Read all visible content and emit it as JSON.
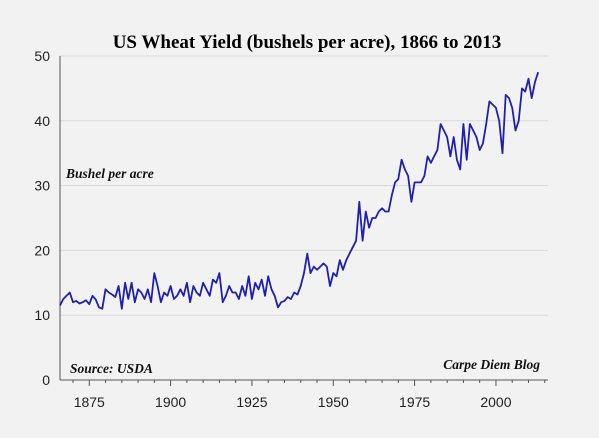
{
  "chart_data": {
    "type": "line",
    "title": "US Wheat Yield (bushels per acre), 1866 to 2013",
    "ylabel": "Bushel per acre",
    "xlabel": "",
    "source": "Source: USDA",
    "credit": "Carpe Diem Blog",
    "xlim": [
      1866,
      2016
    ],
    "ylim": [
      0,
      50
    ],
    "grid": true,
    "x_ticks": [
      1875,
      1900,
      1925,
      1950,
      1975,
      2000
    ],
    "y_ticks": [
      0,
      10,
      20,
      30,
      40,
      50
    ],
    "line_color": "#1f1fb4",
    "series": [
      {
        "values": [
          [
            1866,
            11.5
          ],
          [
            1867,
            12.5
          ],
          [
            1868,
            13.0
          ],
          [
            1869,
            13.5
          ],
          [
            1870,
            12.0
          ],
          [
            1871,
            12.2
          ],
          [
            1872,
            11.8
          ],
          [
            1873,
            12.0
          ],
          [
            1874,
            12.3
          ],
          [
            1875,
            11.7
          ],
          [
            1876,
            13.0
          ],
          [
            1877,
            12.4
          ],
          [
            1878,
            11.2
          ],
          [
            1879,
            11.0
          ],
          [
            1880,
            14.0
          ],
          [
            1881,
            13.5
          ],
          [
            1882,
            13.2
          ],
          [
            1883,
            12.8
          ],
          [
            1884,
            14.5
          ],
          [
            1885,
            11.0
          ],
          [
            1886,
            15.0
          ],
          [
            1887,
            12.5
          ],
          [
            1888,
            15.0
          ],
          [
            1889,
            12.0
          ],
          [
            1890,
            14.0
          ],
          [
            1891,
            13.5
          ],
          [
            1892,
            12.5
          ],
          [
            1893,
            14.0
          ],
          [
            1894,
            12.0
          ],
          [
            1895,
            16.5
          ],
          [
            1896,
            14.5
          ],
          [
            1897,
            12.0
          ],
          [
            1898,
            13.5
          ],
          [
            1899,
            13.0
          ],
          [
            1900,
            14.5
          ],
          [
            1901,
            12.5
          ],
          [
            1902,
            13.0
          ],
          [
            1903,
            14.0
          ],
          [
            1904,
            13.0
          ],
          [
            1905,
            15.0
          ],
          [
            1906,
            12.0
          ],
          [
            1907,
            14.5
          ],
          [
            1908,
            13.5
          ],
          [
            1909,
            13.0
          ],
          [
            1910,
            15.0
          ],
          [
            1911,
            14.0
          ],
          [
            1912,
            13.0
          ],
          [
            1913,
            15.5
          ],
          [
            1914,
            15.0
          ],
          [
            1915,
            16.5
          ],
          [
            1916,
            12.0
          ],
          [
            1917,
            13.0
          ],
          [
            1918,
            14.5
          ],
          [
            1919,
            13.5
          ],
          [
            1920,
            13.5
          ],
          [
            1921,
            12.5
          ],
          [
            1922,
            14.5
          ],
          [
            1923,
            13.0
          ],
          [
            1924,
            16.0
          ],
          [
            1925,
            12.5
          ],
          [
            1926,
            15.0
          ],
          [
            1927,
            14.0
          ],
          [
            1928,
            15.5
          ],
          [
            1929,
            13.0
          ],
          [
            1930,
            16.0
          ],
          [
            1931,
            14.0
          ],
          [
            1932,
            13.0
          ],
          [
            1933,
            11.2
          ],
          [
            1934,
            12.0
          ],
          [
            1935,
            12.2
          ],
          [
            1936,
            12.8
          ],
          [
            1937,
            12.5
          ],
          [
            1938,
            13.5
          ],
          [
            1939,
            13.2
          ],
          [
            1940,
            14.5
          ],
          [
            1941,
            16.5
          ],
          [
            1942,
            19.5
          ],
          [
            1943,
            16.5
          ],
          [
            1944,
            17.5
          ],
          [
            1945,
            17.0
          ],
          [
            1946,
            17.5
          ],
          [
            1947,
            18.0
          ],
          [
            1948,
            17.5
          ],
          [
            1949,
            14.5
          ],
          [
            1950,
            16.5
          ],
          [
            1951,
            16.0
          ],
          [
            1952,
            18.5
          ],
          [
            1953,
            17.0
          ],
          [
            1954,
            18.5
          ],
          [
            1955,
            19.5
          ],
          [
            1956,
            20.5
          ],
          [
            1957,
            21.5
          ],
          [
            1958,
            27.5
          ],
          [
            1959,
            21.5
          ],
          [
            1960,
            26.0
          ],
          [
            1961,
            23.5
          ],
          [
            1962,
            25.0
          ],
          [
            1963,
            25.0
          ],
          [
            1964,
            26.0
          ],
          [
            1965,
            26.5
          ],
          [
            1966,
            26.0
          ],
          [
            1967,
            26.0
          ],
          [
            1968,
            28.5
          ],
          [
            1969,
            30.5
          ],
          [
            1970,
            31.0
          ],
          [
            1971,
            34.0
          ],
          [
            1972,
            32.5
          ],
          [
            1973,
            31.5
          ],
          [
            1974,
            27.5
          ],
          [
            1975,
            30.5
          ],
          [
            1976,
            30.5
          ],
          [
            1977,
            30.5
          ],
          [
            1978,
            31.5
          ],
          [
            1979,
            34.5
          ],
          [
            1980,
            33.5
          ],
          [
            1981,
            34.5
          ],
          [
            1982,
            35.5
          ],
          [
            1983,
            39.5
          ],
          [
            1984,
            38.5
          ],
          [
            1985,
            37.5
          ],
          [
            1986,
            34.5
          ],
          [
            1987,
            37.5
          ],
          [
            1988,
            34.0
          ],
          [
            1989,
            32.5
          ],
          [
            1990,
            39.5
          ],
          [
            1991,
            34.0
          ],
          [
            1992,
            39.5
          ],
          [
            1993,
            38.5
          ],
          [
            1994,
            37.5
          ],
          [
            1995,
            35.5
          ],
          [
            1996,
            36.5
          ],
          [
            1997,
            39.5
          ],
          [
            1998,
            43.0
          ],
          [
            1999,
            42.5
          ],
          [
            2000,
            42.0
          ],
          [
            2001,
            40.0
          ],
          [
            2002,
            35.0
          ],
          [
            2003,
            44.0
          ],
          [
            2004,
            43.5
          ],
          [
            2005,
            42.0
          ],
          [
            2006,
            38.5
          ],
          [
            2007,
            40.0
          ],
          [
            2008,
            45.0
          ],
          [
            2009,
            44.5
          ],
          [
            2010,
            46.5
          ],
          [
            2011,
            43.5
          ],
          [
            2012,
            46.0
          ],
          [
            2013,
            47.5
          ]
        ]
      }
    ]
  }
}
